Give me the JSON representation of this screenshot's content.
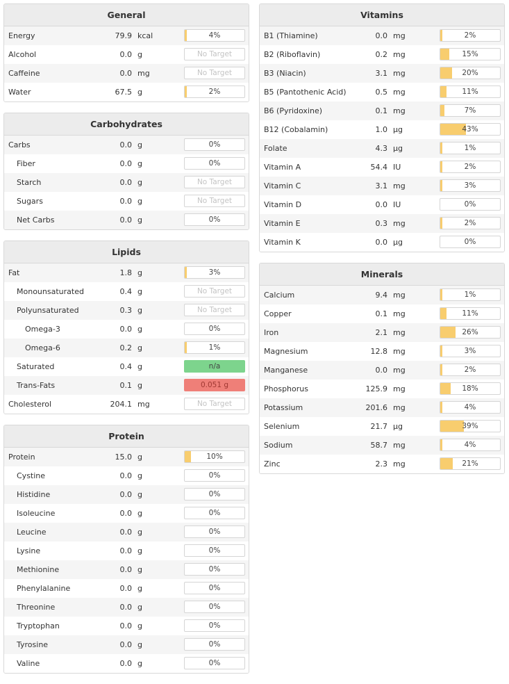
{
  "colors": {
    "bar_fill": "#f8cd6e",
    "green": "#7dd48d",
    "red": "#ef7f78"
  },
  "left_panels": [
    {
      "title": "General",
      "rows": [
        {
          "name": "Energy",
          "amount": "79.9",
          "unit": "kcal",
          "target": "4%",
          "pct": 0.04
        },
        {
          "name": "Alcohol",
          "amount": "0.0",
          "unit": "g",
          "target": "No Target",
          "pct": 0,
          "kind": "none"
        },
        {
          "name": "Caffeine",
          "amount": "0.0",
          "unit": "mg",
          "target": "No Target",
          "pct": 0,
          "kind": "none"
        },
        {
          "name": "Water",
          "amount": "67.5",
          "unit": "g",
          "target": "2%",
          "pct": 0.02
        }
      ]
    },
    {
      "title": "Carbohydrates",
      "rows": [
        {
          "name": "Carbs",
          "amount": "0.0",
          "unit": "g",
          "target": "0%",
          "pct": 0
        },
        {
          "name": "Fiber",
          "amount": "0.0",
          "unit": "g",
          "target": "0%",
          "pct": 0,
          "indent": 1
        },
        {
          "name": "Starch",
          "amount": "0.0",
          "unit": "g",
          "target": "No Target",
          "pct": 0,
          "kind": "none",
          "indent": 1
        },
        {
          "name": "Sugars",
          "amount": "0.0",
          "unit": "g",
          "target": "No Target",
          "pct": 0,
          "kind": "none",
          "indent": 1
        },
        {
          "name": "Net Carbs",
          "amount": "0.0",
          "unit": "g",
          "target": "0%",
          "pct": 0,
          "indent": 1
        }
      ]
    },
    {
      "title": "Lipids",
      "rows": [
        {
          "name": "Fat",
          "amount": "1.8",
          "unit": "g",
          "target": "3%",
          "pct": 0.03
        },
        {
          "name": "Monounsaturated",
          "amount": "0.4",
          "unit": "g",
          "target": "No Target",
          "pct": 0,
          "kind": "none",
          "indent": 1
        },
        {
          "name": "Polyunsaturated",
          "amount": "0.3",
          "unit": "g",
          "target": "No Target",
          "pct": 0,
          "kind": "none",
          "indent": 1
        },
        {
          "name": "Omega-3",
          "amount": "0.0",
          "unit": "g",
          "target": "0%",
          "pct": 0,
          "indent": 2
        },
        {
          "name": "Omega-6",
          "amount": "0.2",
          "unit": "g",
          "target": "1%",
          "pct": 0.01,
          "indent": 2
        },
        {
          "name": "Saturated",
          "amount": "0.4",
          "unit": "g",
          "target": "n/a",
          "pct": 0,
          "kind": "green",
          "indent": 1
        },
        {
          "name": "Trans-Fats",
          "amount": "0.1",
          "unit": "g",
          "target": "0.051 g",
          "pct": 0,
          "kind": "red",
          "indent": 1
        },
        {
          "name": "Cholesterol",
          "amount": "204.1",
          "unit": "mg",
          "target": "No Target",
          "pct": 0,
          "kind": "none"
        }
      ]
    },
    {
      "title": "Protein",
      "rows": [
        {
          "name": "Protein",
          "amount": "15.0",
          "unit": "g",
          "target": "10%",
          "pct": 0.1
        },
        {
          "name": "Cystine",
          "amount": "0.0",
          "unit": "g",
          "target": "0%",
          "pct": 0,
          "indent": 1
        },
        {
          "name": "Histidine",
          "amount": "0.0",
          "unit": "g",
          "target": "0%",
          "pct": 0,
          "indent": 1
        },
        {
          "name": "Isoleucine",
          "amount": "0.0",
          "unit": "g",
          "target": "0%",
          "pct": 0,
          "indent": 1
        },
        {
          "name": "Leucine",
          "amount": "0.0",
          "unit": "g",
          "target": "0%",
          "pct": 0,
          "indent": 1
        },
        {
          "name": "Lysine",
          "amount": "0.0",
          "unit": "g",
          "target": "0%",
          "pct": 0,
          "indent": 1
        },
        {
          "name": "Methionine",
          "amount": "0.0",
          "unit": "g",
          "target": "0%",
          "pct": 0,
          "indent": 1
        },
        {
          "name": "Phenylalanine",
          "amount": "0.0",
          "unit": "g",
          "target": "0%",
          "pct": 0,
          "indent": 1
        },
        {
          "name": "Threonine",
          "amount": "0.0",
          "unit": "g",
          "target": "0%",
          "pct": 0,
          "indent": 1
        },
        {
          "name": "Tryptophan",
          "amount": "0.0",
          "unit": "g",
          "target": "0%",
          "pct": 0,
          "indent": 1
        },
        {
          "name": "Tyrosine",
          "amount": "0.0",
          "unit": "g",
          "target": "0%",
          "pct": 0,
          "indent": 1
        },
        {
          "name": "Valine",
          "amount": "0.0",
          "unit": "g",
          "target": "0%",
          "pct": 0,
          "indent": 1
        }
      ]
    }
  ],
  "right_panels": [
    {
      "title": "Vitamins",
      "rows": [
        {
          "name": "B1 (Thiamine)",
          "amount": "0.0",
          "unit": "mg",
          "target": "2%",
          "pct": 0.02
        },
        {
          "name": "B2 (Riboflavin)",
          "amount": "0.2",
          "unit": "mg",
          "target": "15%",
          "pct": 0.15
        },
        {
          "name": "B3 (Niacin)",
          "amount": "3.1",
          "unit": "mg",
          "target": "20%",
          "pct": 0.2
        },
        {
          "name": "B5 (Pantothenic Acid)",
          "amount": "0.5",
          "unit": "mg",
          "target": "11%",
          "pct": 0.11
        },
        {
          "name": "B6 (Pyridoxine)",
          "amount": "0.1",
          "unit": "mg",
          "target": "7%",
          "pct": 0.07
        },
        {
          "name": "B12 (Cobalamin)",
          "amount": "1.0",
          "unit": "µg",
          "target": "43%",
          "pct": 0.43
        },
        {
          "name": "Folate",
          "amount": "4.3",
          "unit": "µg",
          "target": "1%",
          "pct": 0.01
        },
        {
          "name": "Vitamin A",
          "amount": "54.4",
          "unit": "IU",
          "target": "2%",
          "pct": 0.02
        },
        {
          "name": "Vitamin C",
          "amount": "3.1",
          "unit": "mg",
          "target": "3%",
          "pct": 0.03
        },
        {
          "name": "Vitamin D",
          "amount": "0.0",
          "unit": "IU",
          "target": "0%",
          "pct": 0
        },
        {
          "name": "Vitamin E",
          "amount": "0.3",
          "unit": "mg",
          "target": "2%",
          "pct": 0.02
        },
        {
          "name": "Vitamin K",
          "amount": "0.0",
          "unit": "µg",
          "target": "0%",
          "pct": 0
        }
      ]
    },
    {
      "title": "Minerals",
      "rows": [
        {
          "name": "Calcium",
          "amount": "9.4",
          "unit": "mg",
          "target": "1%",
          "pct": 0.01
        },
        {
          "name": "Copper",
          "amount": "0.1",
          "unit": "mg",
          "target": "11%",
          "pct": 0.11
        },
        {
          "name": "Iron",
          "amount": "2.1",
          "unit": "mg",
          "target": "26%",
          "pct": 0.26
        },
        {
          "name": "Magnesium",
          "amount": "12.8",
          "unit": "mg",
          "target": "3%",
          "pct": 0.03
        },
        {
          "name": "Manganese",
          "amount": "0.0",
          "unit": "mg",
          "target": "2%",
          "pct": 0.02
        },
        {
          "name": "Phosphorus",
          "amount": "125.9",
          "unit": "mg",
          "target": "18%",
          "pct": 0.18
        },
        {
          "name": "Potassium",
          "amount": "201.6",
          "unit": "mg",
          "target": "4%",
          "pct": 0.04
        },
        {
          "name": "Selenium",
          "amount": "21.7",
          "unit": "µg",
          "target": "39%",
          "pct": 0.39
        },
        {
          "name": "Sodium",
          "amount": "58.7",
          "unit": "mg",
          "target": "4%",
          "pct": 0.04
        },
        {
          "name": "Zinc",
          "amount": "2.3",
          "unit": "mg",
          "target": "21%",
          "pct": 0.21
        }
      ]
    }
  ]
}
